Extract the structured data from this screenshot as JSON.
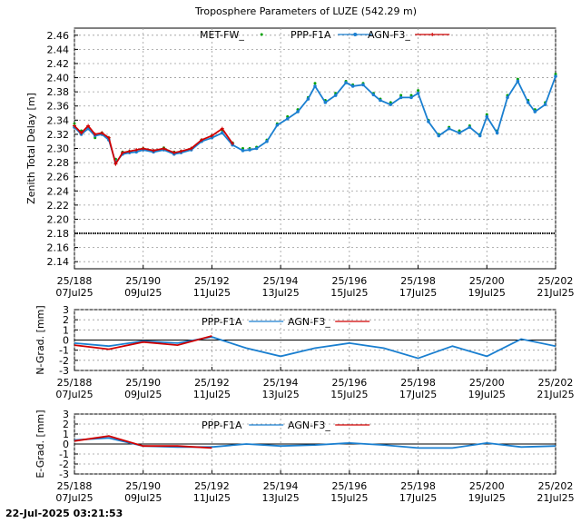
{
  "footer": {
    "timestamp": "22-Jul-2025 03:21:53"
  },
  "chart_data": [
    {
      "type": "line",
      "title": "Troposphere Parameters of LUZE (542.29 m)",
      "xlabel": "",
      "ylabel": "Zenith Total Delay [m]",
      "xlim": [
        188,
        202
      ],
      "ylim": [
        2.13,
        2.47
      ],
      "yticks": [
        2.14,
        2.16,
        2.18,
        2.2,
        2.22,
        2.24,
        2.26,
        2.28,
        2.3,
        2.32,
        2.34,
        2.36,
        2.38,
        2.4,
        2.42,
        2.44,
        2.46
      ],
      "ytick_labels": [
        "2.14",
        "2.16",
        "2.18",
        "2.20",
        "2.22",
        "2.24",
        "2.26",
        "2.28",
        "2.30",
        "2.32",
        "2.34",
        "2.36",
        "2.38",
        "2.40",
        "2.42",
        "2.44",
        "2.46"
      ],
      "xticks": [
        188,
        190,
        192,
        194,
        196,
        198,
        200,
        202
      ],
      "xtick_labels": [
        [
          "25/188",
          "07Jul25"
        ],
        [
          "25/190",
          "09Jul25"
        ],
        [
          "25/192",
          "11Jul25"
        ],
        [
          "25/194",
          "13Jul25"
        ],
        [
          "25/196",
          "15Jul25"
        ],
        [
          "25/198",
          "17Jul25"
        ],
        [
          "25/200",
          "19Jul25"
        ],
        [
          "25/202",
          "21Jul25"
        ]
      ],
      "grid": true,
      "legend": "top-center",
      "series": [
        {
          "name": "MET-FW_",
          "color": "#00a000",
          "style": "dots",
          "x": [
            188.0,
            188.2,
            188.4,
            188.6,
            188.8,
            189.0,
            189.2,
            189.4,
            189.6,
            189.8,
            190.0,
            190.3,
            190.6,
            190.9,
            191.1,
            191.4,
            191.7,
            192.0,
            192.3,
            192.6,
            192.9,
            193.1,
            193.3,
            193.6,
            193.9,
            194.2,
            194.5,
            194.8,
            195.0,
            195.3,
            195.6,
            195.9,
            196.1,
            196.4,
            196.7,
            196.9,
            197.2,
            197.5,
            197.8,
            198.0,
            198.3,
            198.6,
            198.9,
            199.2,
            199.5,
            199.8,
            200.0,
            200.3,
            200.6,
            200.9,
            201.2,
            201.4,
            201.7,
            202.0
          ],
          "y": [
            2.335,
            2.325,
            2.33,
            2.315,
            2.322,
            2.315,
            2.285,
            2.295,
            2.296,
            2.297,
            2.3,
            2.297,
            2.301,
            2.295,
            2.296,
            2.3,
            2.312,
            2.318,
            2.326,
            2.308,
            2.3,
            2.3,
            2.302,
            2.312,
            2.335,
            2.345,
            2.355,
            2.372,
            2.392,
            2.368,
            2.378,
            2.395,
            2.39,
            2.392,
            2.378,
            2.37,
            2.365,
            2.375,
            2.375,
            2.382,
            2.34,
            2.32,
            2.33,
            2.325,
            2.332,
            2.32,
            2.348,
            2.325,
            2.375,
            2.398,
            2.368,
            2.355,
            2.365,
            2.405
          ]
        },
        {
          "name": "PPP-F1A",
          "color": "#1a7fd0",
          "style": "line-dots",
          "x": [
            188.0,
            188.2,
            188.4,
            188.6,
            188.8,
            189.0,
            189.2,
            189.4,
            189.6,
            189.8,
            190.0,
            190.3,
            190.6,
            190.9,
            191.1,
            191.4,
            191.7,
            192.0,
            192.3,
            192.6,
            192.9,
            193.1,
            193.3,
            193.6,
            193.9,
            194.2,
            194.5,
            194.8,
            195.0,
            195.3,
            195.6,
            195.9,
            196.1,
            196.4,
            196.7,
            196.9,
            197.2,
            197.5,
            197.8,
            198.0,
            198.3,
            198.6,
            198.9,
            199.2,
            199.5,
            199.8,
            200.0,
            200.3,
            200.6,
            200.9,
            201.2,
            201.4,
            201.7,
            202.0
          ],
          "y": [
            2.33,
            2.32,
            2.328,
            2.318,
            2.32,
            2.312,
            2.28,
            2.292,
            2.294,
            2.295,
            2.298,
            2.295,
            2.298,
            2.292,
            2.294,
            2.298,
            2.31,
            2.315,
            2.322,
            2.305,
            2.297,
            2.298,
            2.3,
            2.31,
            2.333,
            2.342,
            2.352,
            2.37,
            2.388,
            2.365,
            2.375,
            2.393,
            2.388,
            2.39,
            2.376,
            2.368,
            2.362,
            2.372,
            2.372,
            2.378,
            2.338,
            2.318,
            2.328,
            2.322,
            2.33,
            2.318,
            2.345,
            2.322,
            2.372,
            2.395,
            2.365,
            2.352,
            2.362,
            2.402
          ]
        },
        {
          "name": "AGN-F3_",
          "color": "#d00000",
          "style": "line-cross",
          "x": [
            188.0,
            188.2,
            188.4,
            188.6,
            188.8,
            189.0,
            189.2,
            189.4,
            189.6,
            189.8,
            190.0,
            190.3,
            190.6,
            190.9,
            191.1,
            191.4,
            191.7,
            192.0,
            192.3,
            192.6
          ],
          "y": [
            2.332,
            2.322,
            2.332,
            2.32,
            2.322,
            2.315,
            2.278,
            2.294,
            2.296,
            2.298,
            2.3,
            2.297,
            2.3,
            2.294,
            2.296,
            2.3,
            2.312,
            2.318,
            2.328,
            2.307
          ]
        },
        {
          "name": "constant",
          "color": "#000000",
          "style": "baseline",
          "x": [
            188,
            202
          ],
          "y": [
            2.18,
            2.18
          ]
        }
      ]
    },
    {
      "type": "line",
      "title": "",
      "xlabel": "",
      "ylabel": "N-Grad. [mm]",
      "xlim": [
        188,
        202
      ],
      "ylim": [
        -3,
        3
      ],
      "yticks": [
        -3,
        -2,
        -1,
        0,
        1,
        2,
        3
      ],
      "ytick_labels": [
        "-3",
        "-2",
        "-1",
        "0",
        "1",
        "2",
        "3"
      ],
      "xticks": [
        188,
        190,
        192,
        194,
        196,
        198,
        200,
        202
      ],
      "xtick_labels": [
        [
          "25/188",
          "07Jul25"
        ],
        [
          "25/190",
          "09Jul25"
        ],
        [
          "25/192",
          "11Jul25"
        ],
        [
          "25/194",
          "13Jul25"
        ],
        [
          "25/196",
          "15Jul25"
        ],
        [
          "25/198",
          "17Jul25"
        ],
        [
          "25/200",
          "19Jul25"
        ],
        [
          "25/202",
          "21Jul25"
        ]
      ],
      "grid": true,
      "legend": "top-center",
      "series": [
        {
          "name": "PPP-F1A",
          "color": "#1a7fd0",
          "x": [
            188,
            189,
            190,
            191,
            192,
            193,
            194,
            195,
            196,
            197,
            198,
            199,
            200,
            201,
            202
          ],
          "y": [
            -0.3,
            -0.6,
            -0.1,
            -0.3,
            0.3,
            -0.8,
            -1.6,
            -0.8,
            -0.3,
            -0.8,
            -1.8,
            -0.6,
            -1.6,
            0.1,
            -0.6
          ]
        },
        {
          "name": "AGN-F3_",
          "color": "#d00000",
          "x": [
            188,
            189,
            190,
            191,
            192
          ],
          "y": [
            -0.5,
            -0.9,
            -0.2,
            -0.5,
            0.4
          ]
        }
      ]
    },
    {
      "type": "line",
      "title": "",
      "xlabel": "",
      "ylabel": "E-Grad. [mm]",
      "xlim": [
        188,
        202
      ],
      "ylim": [
        -3,
        3
      ],
      "yticks": [
        -3,
        -2,
        -1,
        0,
        1,
        2,
        3
      ],
      "ytick_labels": [
        "-3",
        "-2",
        "-1",
        "0",
        "1",
        "2",
        "3"
      ],
      "xticks": [
        188,
        190,
        192,
        194,
        196,
        198,
        200,
        202
      ],
      "xtick_labels": [
        [
          "25/188",
          "07Jul25"
        ],
        [
          "25/190",
          "09Jul25"
        ],
        [
          "25/192",
          "11Jul25"
        ],
        [
          "25/194",
          "13Jul25"
        ],
        [
          "25/196",
          "15Jul25"
        ],
        [
          "25/198",
          "17Jul25"
        ],
        [
          "25/200",
          "19Jul25"
        ],
        [
          "25/202",
          "21Jul25"
        ]
      ],
      "grid": true,
      "legend": "top-center",
      "series": [
        {
          "name": "PPP-F1A",
          "color": "#1a7fd0",
          "x": [
            188,
            189,
            190,
            191,
            192,
            193,
            194,
            195,
            196,
            197,
            198,
            199,
            200,
            201,
            202
          ],
          "y": [
            0.4,
            0.6,
            -0.2,
            -0.3,
            -0.3,
            0.0,
            -0.2,
            -0.1,
            0.1,
            -0.1,
            -0.4,
            -0.4,
            0.1,
            -0.3,
            -0.2
          ]
        },
        {
          "name": "AGN-F3_",
          "color": "#d00000",
          "x": [
            188,
            189,
            190,
            191,
            192
          ],
          "y": [
            0.3,
            0.8,
            -0.2,
            -0.2,
            -0.4
          ]
        }
      ]
    }
  ]
}
